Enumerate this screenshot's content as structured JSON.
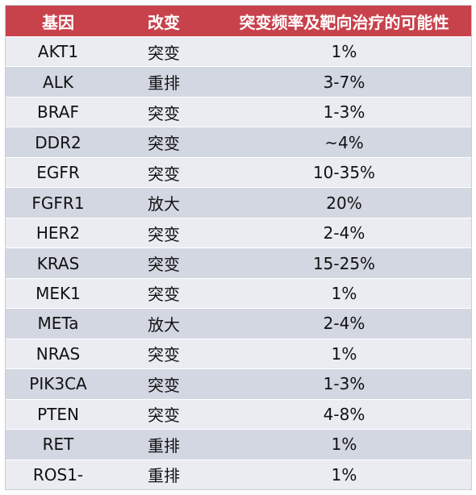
{
  "header": {
    "gene": "基因",
    "change": "改变",
    "freq": "突变频率及靶向治疗的可能性"
  },
  "rows": [
    {
      "gene": "AKT1",
      "change": "突变",
      "freq": "1%"
    },
    {
      "gene": "ALK",
      "change": "重排",
      "freq": "3-7%"
    },
    {
      "gene": "BRAF",
      "change": "突变",
      "freq": "1-3%"
    },
    {
      "gene": "DDR2",
      "change": "突变",
      "freq": "~4%"
    },
    {
      "gene": "EGFR",
      "change": "突变",
      "freq": "10-35%"
    },
    {
      "gene": "FGFR1",
      "change": "放大",
      "freq": "20%"
    },
    {
      "gene": "HER2",
      "change": "突变",
      "freq": "2-4%"
    },
    {
      "gene": "KRAS",
      "change": "突变",
      "freq": "15-25%"
    },
    {
      "gene": "MEK1",
      "change": "突变",
      "freq": "1%"
    },
    {
      "gene": "METa",
      "change": "放大",
      "freq": "2-4%"
    },
    {
      "gene": "NRAS",
      "change": "突变",
      "freq": "1%"
    },
    {
      "gene": "PIK3CA",
      "change": "突变",
      "freq": "1-3%"
    },
    {
      "gene": "PTEN",
      "change": "突变",
      "freq": "4-8%"
    },
    {
      "gene": "RET",
      "change": "重排",
      "freq": "1%"
    },
    {
      "gene": "ROS1-",
      "change": "重排",
      "freq": "1%"
    }
  ],
  "colors": {
    "header_bg": "#c8424b",
    "row_light": "#eaecf2",
    "row_dark": "#d3d7e2"
  }
}
